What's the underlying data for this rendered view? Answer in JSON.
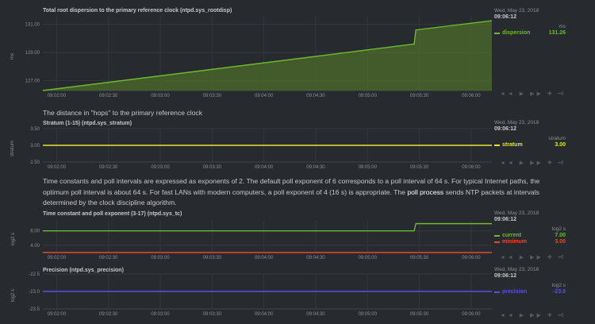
{
  "time_ticks": [
    "09:02:00",
    "09:02:30",
    "09:03:00",
    "09:03:30",
    "09:04:00",
    "09:04:30",
    "09:05:00",
    "09:05:30",
    "09:06:00"
  ],
  "charts": [
    {
      "title": "Total root dispersion to the primary reference clock (ntpd.sys_rootdisp)",
      "ylabel": "ms",
      "date": "Wed, May 23, 2018",
      "time": "09:06:12",
      "units": "ms",
      "yticks": [
        "131.00",
        "129.00",
        "127.00"
      ],
      "legend": [
        {
          "name": "dispersion",
          "value": "131.26",
          "color": "#6bba2f"
        }
      ],
      "toolbar": "◄◄ ▶ ▶▶ ✚ ━",
      "resize": "⇕"
    },
    {
      "title": "Stratum (1-15) (ntpd.sys_stratum)",
      "ylabel": "stratum",
      "date": "Wed, May 23, 2018",
      "time": "09:06:12",
      "units": "stratum",
      "yticks": [
        "3.50",
        "3.00",
        "2.50"
      ],
      "legend": [
        {
          "name": "stratum",
          "value": "3.00",
          "color": "#e5e52e"
        }
      ],
      "toolbar": "◄◄ ▶ ▶▶ ✚ ━",
      "resize": "⇕"
    },
    {
      "title": "Time constant and poll exponent (3-17) (ntpd.sys_tc)",
      "ylabel": "log2 s",
      "date": "Wed, May 23, 2018",
      "time": "09:06:12",
      "units": "log2 s",
      "yticks": [
        "6.00",
        "4.00"
      ],
      "legend": [
        {
          "name": "current",
          "value": "7.00",
          "color": "#6bba2f"
        },
        {
          "name": "minimum",
          "value": "3.00",
          "color": "#e34b2f"
        }
      ],
      "toolbar": "◄◄ ▶ ▶▶ ✚ ━",
      "resize": "⇕"
    },
    {
      "title": "Precision (ntpd.sys_precision)",
      "ylabel": "log2 s",
      "date": "Wed, May 23, 2018",
      "time": "09:06:12",
      "units": "log2 s",
      "yticks": [
        "-22.5",
        "-23.0",
        "-23.5"
      ],
      "legend": [
        {
          "name": "precision",
          "value": "-23.0",
          "color": "#5353e8"
        }
      ],
      "toolbar": "◄◄ ▶ ▶▶ ✚ ━",
      "resize": "⇕"
    }
  ],
  "desc_stratum": "The distance in \"hops\" to the primary reference clock",
  "desc_poll": {
    "before": "Time constants and poll intervals are expressed as exponents of 2. The default poll exponent of 6 corresponds to a poll interval of 64 s. For typical Internet paths, the optimum poll interval is about 64 s. For fast LANs with modern computers, a poll exponent of 4 (16 s) is appropriate. The ",
    "link": "poll process",
    "after": " sends NTP packets at intervals determined by the clock discipline algorithm."
  },
  "chart_data": [
    {
      "type": "area",
      "title": "Total root dispersion to the primary reference clock (ntpd.sys_rootdisp)",
      "ylabel": "ms",
      "ylim": [
        126.3,
        131.6
      ],
      "series": [
        {
          "name": "dispersion",
          "x": [
            "09:01:52",
            "09:05:27",
            "09:05:28",
            "09:06:12"
          ],
          "values": [
            126.3,
            129.6,
            130.6,
            131.26
          ]
        }
      ]
    },
    {
      "type": "line",
      "title": "Stratum (1-15) (ntpd.sys_stratum)",
      "ylabel": "stratum",
      "ylim": [
        2.5,
        3.5
      ],
      "series": [
        {
          "name": "stratum",
          "x": [
            "09:01:52",
            "09:06:12"
          ],
          "values": [
            3.0,
            3.0
          ]
        }
      ]
    },
    {
      "type": "line",
      "title": "Time constant and poll exponent (3-17) (ntpd.sys_tc)",
      "ylabel": "log2 s",
      "ylim": [
        3.0,
        7.4
      ],
      "series": [
        {
          "name": "current",
          "x": [
            "09:01:52",
            "09:05:27",
            "09:05:28",
            "09:06:12"
          ],
          "values": [
            6.0,
            6.0,
            7.0,
            7.0
          ]
        },
        {
          "name": "minimum",
          "x": [
            "09:01:52",
            "09:06:12"
          ],
          "values": [
            3.0,
            3.0
          ]
        }
      ]
    },
    {
      "type": "line",
      "title": "Precision (ntpd.sys_precision)",
      "ylabel": "log2 s",
      "ylim": [
        -23.5,
        -22.5
      ],
      "series": [
        {
          "name": "precision",
          "x": [
            "09:01:52",
            "09:06:12"
          ],
          "values": [
            -23.0,
            -23.0
          ]
        }
      ]
    }
  ]
}
